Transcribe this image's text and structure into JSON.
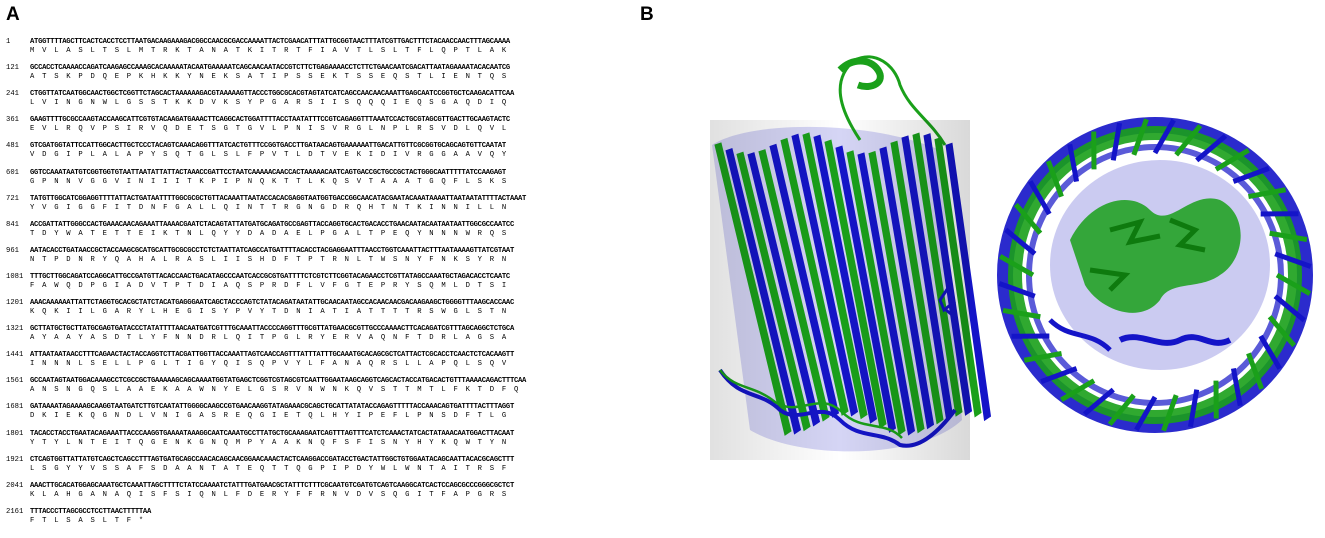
{
  "panels": {
    "a_label": "A",
    "b_label": "B"
  },
  "sequence_blocks": [
    {
      "pos": "1",
      "nt": "ATGGTTTTAGCTTCACTCACCTCCTTAATGACAAGAAAGACGGCCAACGCGACCAAAATTACTCGAACATTTATTGCGGTAACTTTATCGTTGACTTTCTACAACCAACTTTAGCAAAA",
      "aa": "M  V  L  A  S  L  T  S  L  M  T  R  K  T  A  N  A  T  K  I  T  R  T  F  I  A  V  T  L  S  L  T  F  L  Q  P  T  L  A  K"
    },
    {
      "pos": "121",
      "nt": "GCCACCTCAAAACCAGATCAAGAGCCAAAGCACAAAAATACAATGAAAAATCAGCAACAATACCGTCTTCTGAGAAAACCTCTTCTGAACAATCGACATTAATAGAAAATACACAATCG",
      "aa": "A  T  S  K  P  D  Q  E  P  K  H  K  K  Y  N  E  K  S  A  T  I  P  S  S  E  K  T  S  S  E  Q  S  T  L  I  E  N  T  Q  S"
    },
    {
      "pos": "241",
      "nt": "CTGGTTATCAATGGCAACTGGCTCGGTTCTAGCACTAAAAAAGACGTAAAAAGTTACCCTGGCGCACGTAGTATCATCAGCCAACAACAAATTGAGCAATCCGGTGCTCAAGACATTCAA",
      "aa": "L  V  I  N  G  N  W  L  G  S  S  T  K  K  D  V  K  S  Y  P  G  A  R  S  I  I  S  Q  Q  Q  I  E  Q  S  G  A  Q  D  I  Q"
    },
    {
      "pos": "361",
      "nt": "GAAGTTTTGCGCCAAGTACCAAGCATTCGTGTACAAGATGAAACTTCAGGCACTGGATTTTACCTAATATTTCCGTCAGAGGTTTAAATCCACTGCGTAGCGTTGACTTGCAAGTACTC",
      "aa": "E  V  L  R  Q  V  P  S  I  R  V  Q  D  E  T  S  G  T  G  V  L  P  N  I  S  V  R  G  L  N  P  L  R  S  V  D  L  Q  V  L"
    },
    {
      "pos": "481",
      "nt": "GTCGATGGTATTCCATTGGCACTTGCTCCCTACAGTCAAACAGGTTTATCACTGTTTCCGGTGACCTTGATAACAGTGAAAAAATTGACATTGTTCGCGGTGCAGCAGTGTTCAATAT",
      "aa": "V  D  G  I  P  L  A  L  A  P  Y  S  Q  T  G  L  S  L  F  P  V  T  L  D  T  V  E  K  I  D  I  V  R  G  G  A  A  V  Q  Y"
    },
    {
      "pos": "601",
      "nt": "GGTCCAAATAATGTCGGTGGTGTAATTAATATTATTACTAAACCGATTCCTAATCAAAAACAACCACTAAAAACAATCAGTGACCGCTGCCGCTACTGGGCAATTTTTATCCAAGAGT",
      "aa": "G  P  N  N  V  G  G  V  I  N  I  I  I  T  K  P  I  P  N  Q  K  T  T  L  K  Q  S  V  T  A  A  A  T  G  Q  F  L  S  K  S"
    },
    {
      "pos": "721",
      "nt": "TATGTTGGCATCGGAGGTTTTATTACTGATAATTTTGGCGCGCTGTTACAAATTAATACCACACGAGGTAATGGTGACCGGCAACATACGAATACAAATAAAATTAATAATATTTTACTAAAT",
      "aa": "Y  V  G  I  G  G  F  I  T  D  N  F  G  A  L  L  Q  I  N  T  T  R  G  N  G  D  R  Q  H  T  N  T  K  I  N  N  I  L  L  N"
    },
    {
      "pos": "841",
      "nt": "ACCGATTATTGGGCCACTGAAACAACAGAAATTAAAACGAATCTACAGTATTATGATGCAGATGCCGAGTTACCAGGTGCACTGACACCTGAACAATACAATAATAATTGGCGCCAATCC",
      "aa": "T  D  Y  W  A  T  E  T  T  E  I  K  T  N  L  Q  Y  Y  D  A  D  A  E  L  P  G  A  L  T  P  E  Q  Y  N  N  N  W  R  Q  S"
    },
    {
      "pos": "961",
      "nt": "AATACACCTGATAACCGCTACCAAGCGCATGCATTGCGCGCCTCTCTAATTATCAGCCATGATTTTACACCTACGAGGAATTTAACCTGGTCAAATTACTTTAATAAAAGTTATCGTAAT",
      "aa": "N  T  P  D  N  R  Y  Q  A  H  A  L  R  A  S  L  I  I  S  H  D  F  T  P  T  R  N  L  T  W  S  N  Y  F  N  K  S  Y  R  N"
    },
    {
      "pos": "1081",
      "nt": "TTTGCTTGGCAGATCCAGGCATTGCCGATGTTACACCAACTGACATAGCCCAATCACCGCGTGATTTTCTCGTCTTCGGTACAGAACCTCGTTATAGCCAAATGCTAGACACCTCAATC",
      "aa": "F  A  W  Q  D  P  G  I  A  D  V  T  P  T  D  I  A  Q  S  P  R  D  F  L  V  F  G  T  E  P  R  Y  S  Q  M  L  D  T  S  I"
    },
    {
      "pos": "1201",
      "nt": "AAACAAAAAATTATTCTAGGTGCACGCTATCTACATGAGGGAATCAGCTACCCAGTCTATACAGATAATATTGCAACAATAGCCACAACAACGACAAGAAGCTGGGGTTTAAGCACCAAC",
      "aa": "K  Q  K  I  I  L  G  A  R  Y  L  H  E  G  I  S  Y  P  V  Y  T  D  N  I  A  T  I  A  T  T  T  T  R  S  W  G  L  S  T  N"
    },
    {
      "pos": "1321",
      "nt": "GCTTATGCTGCTTATGCGAGTGATACCCTATATTTTAACAATGATCGTTTGCAAATTACCCCAGGTTTGCGTTATGAACGCGTTGCCCAAAACTTCACAGATCGTTTAGCAGGCTCTGCA",
      "aa": "A  Y  A  A  Y  A  S  D  T  L  Y  F  N  N  D  R  L  Q  I  T  P  G  L  R  Y  E  R  V  A  Q  N  F  T  D  R  L  A  G  S  A"
    },
    {
      "pos": "1441",
      "nt": "ATTAATAATAACCTTTCAGAACTACTACCAGGTCTTACGATTGGTTACCAAATTAGTCAACCAGTTTATTTATTTGCAAATGCACAGCGCTCATTACTCGCACCTCAACTCTCACAAGTT",
      "aa": "I  N  N  N  L  S  E  L  L  P  G  L  T  I  G  Y  Q  I  S  Q  P  V  Y  L  F  A  N  A  Q  R  S  L  L  A  P  Q  L  S  Q  V"
    },
    {
      "pos": "1561",
      "nt": "GCCAATAGTAATGGACAAAGCCTCGCCGCTGAAAAAGCAGCAAAATGGTATGAGCTCGGTCGTAGCGTCAATTGGAATAAGCAGGTCAGCACTACCATGACACTGTTTAAAACAGACTTTCAA",
      "aa": "A  N  S  N  G  Q  S  L  A  A  E  K  A  A  W  N  Y  E  L  G  S  R  V  N  W  N  K  Q  V  S  T  T  M  T  L  F  K  T  D  F  Q"
    },
    {
      "pos": "1681",
      "nt": "GATAAAATAGAAAAGCAAGGTAATGATCTTGTCAATATTGGGGCAAGCCGTGAACAAGGTATAGAAACGCAGCTGCATTATATACCAGAGTTTTTACCAAACAGTGATTTTACTTTAGGT",
      "aa": "D  K  I  E  K  Q  G  N  D  L  V  N  I  G  A  S  R  E  Q  G  I  E  T  Q  L  H  Y  I  P  E  F  L  P  N  S  D  F  T  L  G"
    },
    {
      "pos": "1801",
      "nt": "TACACCTACCTGAATACAGAAATTACCCAAGGTGAAAATAAAGGCAATCAAATGCCTTATGCTGCAAAGAATCAGTTTAGTTTCATCTCAAACTATCACTATAAACAATGGACTTACAAT",
      "aa": "Y  T  Y  L  N  T  E  I  T  Q  G  E  N  K  G  N  Q  M  P  Y  A  A  K  N  Q  F  S  F  I  S  N  Y  H  Y  K  Q  W  T  Y  N"
    },
    {
      "pos": "1921",
      "nt": "CTCAGTGGTTATTATGTCAGCTCAGCCTTTAGTGATGCAGCCAACACAGCAACGGAACAAACTACTCAAGGACCGATACCTGACTATTGGCTGTGGAATACAGCAATTACACGCAGCTTT",
      "aa": "L  S  G  Y  Y  V  S  S  A  F  S  D  A  A  N  T  A  T  E  Q  T  T  Q  G  P  I  P  D  Y  W  L  W  N  T  A  I  T  R  S  F"
    },
    {
      "pos": "2041",
      "nt": "AAACTTGCACATGGAGCAAATGCTCAAATTAGCTTTTCTATCCAAAATCTATTTGATGAACGCTATTTCTTTCGCAATGTCGATGTCAGTCAAGGCATCACTCCAGCGCCCGGGCGCTCT",
      "aa": "K  L  A  H  G  A  N  A  Q  I  S  F  S  I  Q  N  L  F  D  E  R  Y  F  F  R  N  V  D  V  S  Q  G  I  T  F  A  P  G  R  S"
    },
    {
      "pos": "2161",
      "nt": "TTTACCCTTAGCGCCTCCTTAACTTTTTAA",
      "aa": "F  T  L  S  A  S  L  T  F  *"
    }
  ],
  "colors": {
    "model_a": "#1aa01a",
    "model_b": "#1414c8"
  }
}
